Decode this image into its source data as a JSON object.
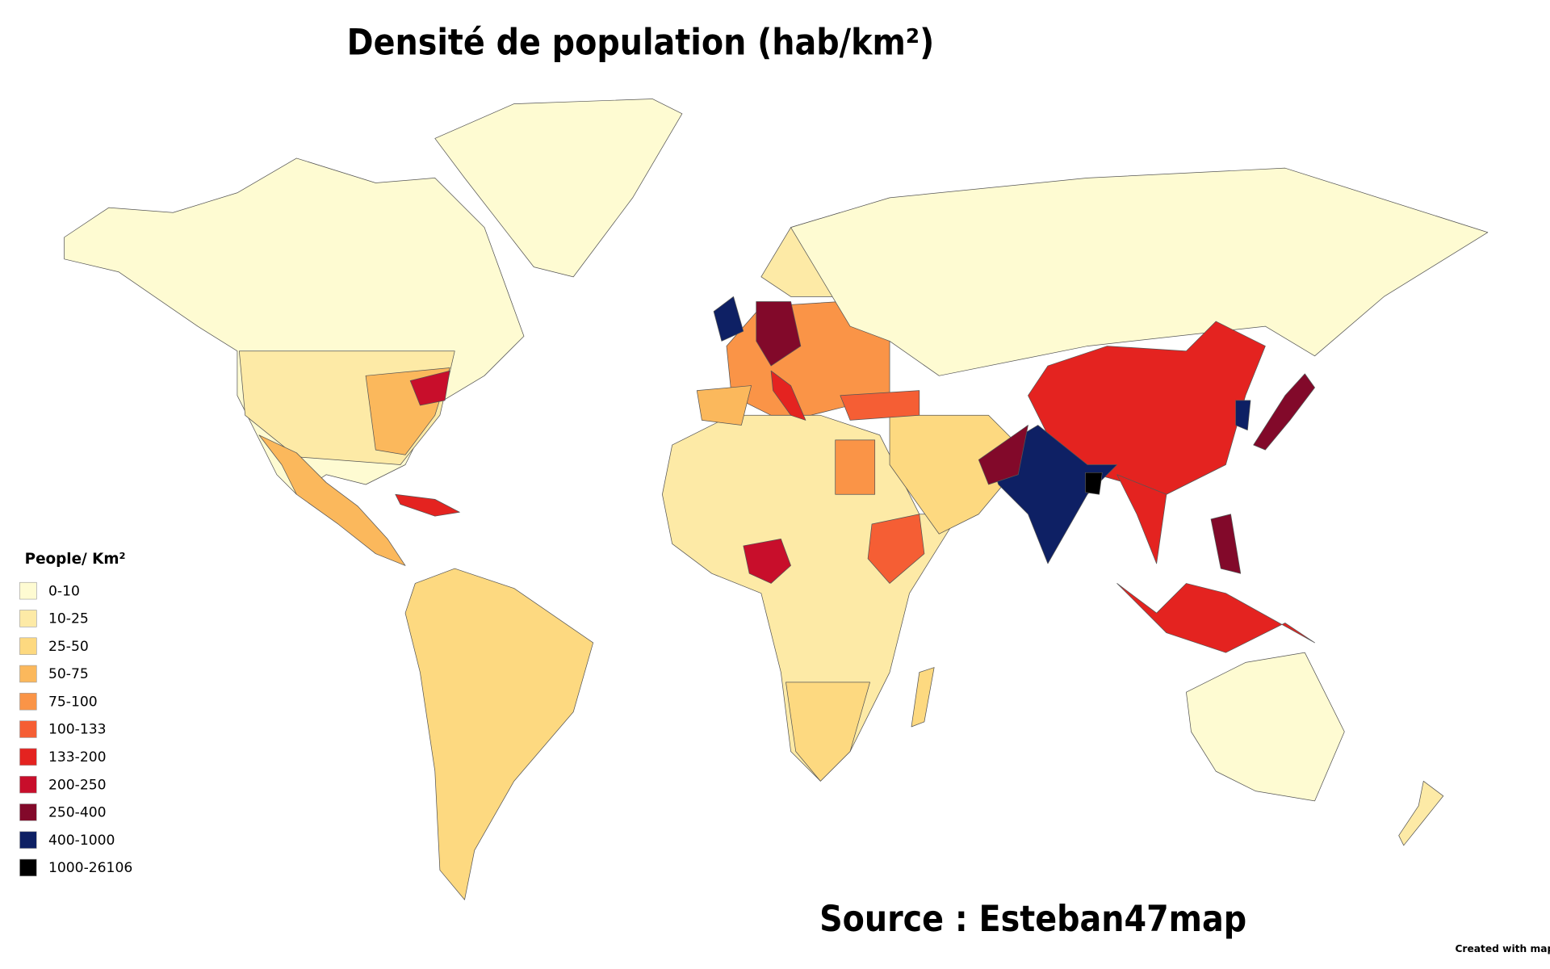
{
  "title": "Densité de population (hab/km²)",
  "legend": {
    "title": "People/ Km²",
    "items": [
      {
        "label": "0-10",
        "color": "#fefbd2"
      },
      {
        "label": "10-25",
        "color": "#fdeaa6"
      },
      {
        "label": "25-50",
        "color": "#fdd980"
      },
      {
        "label": "50-75",
        "color": "#fbb85c"
      },
      {
        "label": "75-100",
        "color": "#fa9447"
      },
      {
        "label": "100-133",
        "color": "#f55e34"
      },
      {
        "label": "133-200",
        "color": "#e42320"
      },
      {
        "label": "200-250",
        "color": "#c80e2b"
      },
      {
        "label": "250-400",
        "color": "#82092a"
      },
      {
        "label": "400-1000",
        "color": "#0e2064"
      },
      {
        "label": "1000-26106",
        "color": "#000000"
      }
    ]
  },
  "source": "Source : Esteban47map",
  "credit": "Created with mapcha"
}
